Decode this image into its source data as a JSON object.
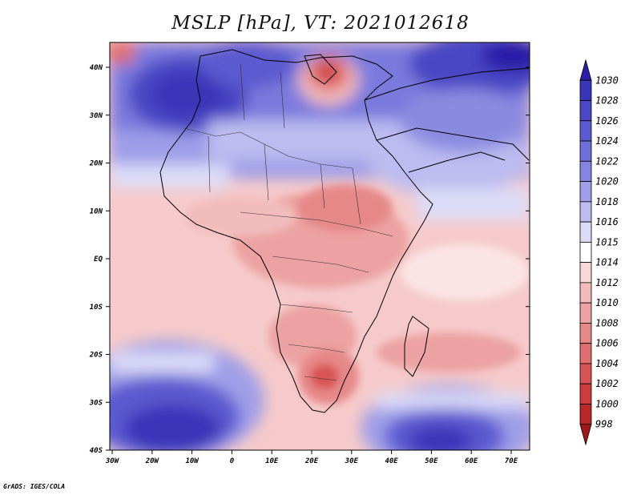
{
  "title": "MSLP [hPa], VT: 2021012618",
  "credit": "GrADS: IGES/COLA",
  "y_axis_labels": [
    "40N",
    "30N",
    "20N",
    "10N",
    "EQ",
    "10S",
    "20S",
    "30S",
    "40S"
  ],
  "x_axis_labels": [
    "30W",
    "20W",
    "10W",
    "0",
    "10E",
    "20E",
    "30E",
    "40E",
    "50E",
    "60E",
    "70E"
  ],
  "colorbar": {
    "levels": [
      "1030",
      "1028",
      "1026",
      "1024",
      "1022",
      "1020",
      "1018",
      "1016",
      "1015",
      "1014",
      "1012",
      "1010",
      "1008",
      "1006",
      "1004",
      "1002",
      "1000",
      "998"
    ],
    "colors": [
      "#2a1fa8",
      "#3a34b8",
      "#4b47c5",
      "#5c5ad0",
      "#6e6fd8",
      "#8585e0",
      "#9f9fe8",
      "#bcbcf0",
      "#dcdcf8",
      "#ffffff",
      "#f8d8d8",
      "#f2bcbc",
      "#eca2a2",
      "#e68888",
      "#e06e6e",
      "#d85454",
      "#cc3c3c",
      "#b82828",
      "#a01818"
    ]
  }
}
